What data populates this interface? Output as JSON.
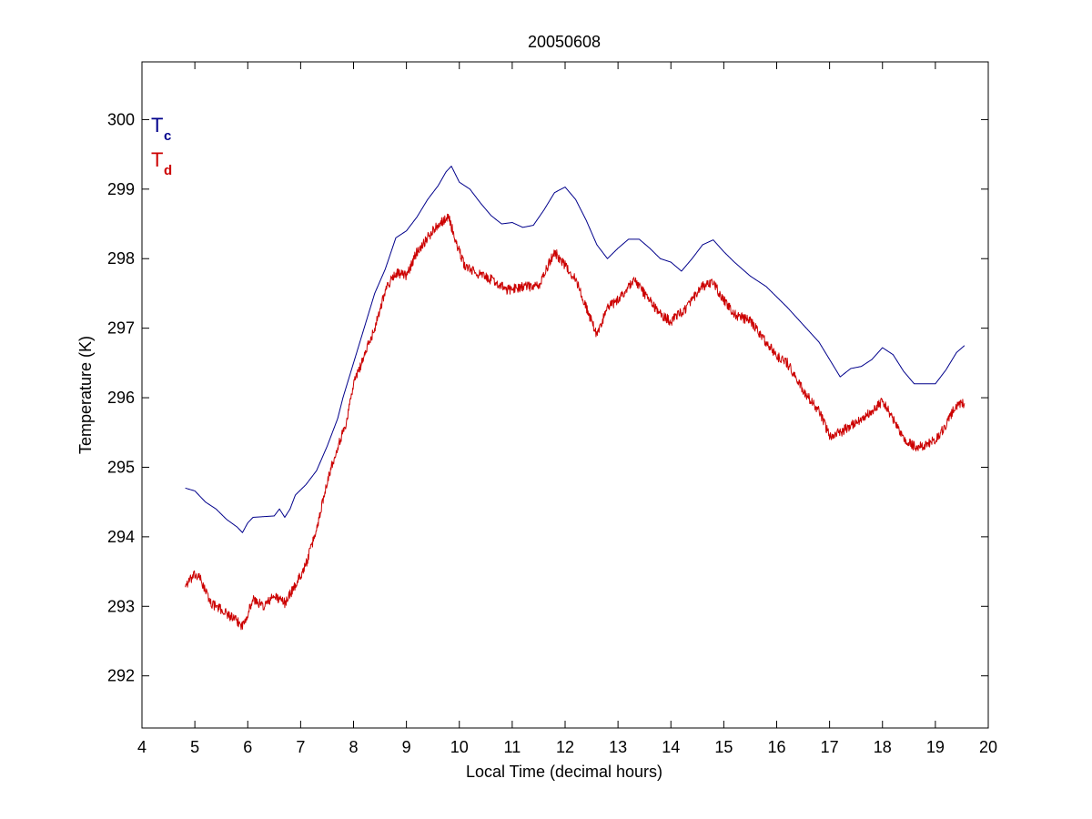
{
  "chart_data": {
    "type": "line",
    "title": "20050608",
    "xlabel": "Local Time (decimal hours)",
    "ylabel": "Temperature (K)",
    "xlim": [
      4,
      20
    ],
    "ylim": [
      291.25,
      300.83
    ],
    "xticks": [
      4,
      5,
      6,
      7,
      8,
      9,
      10,
      11,
      12,
      13,
      14,
      15,
      16,
      17,
      18,
      19,
      20
    ],
    "yticks": [
      292,
      293,
      294,
      295,
      296,
      297,
      298,
      299,
      300
    ],
    "grid": false,
    "legend_position": "top-left",
    "series": [
      {
        "name": "T_c",
        "label_main": "T",
        "label_sub": "c",
        "color": "#00008B",
        "noise": 0.0,
        "points": [
          [
            4.82,
            294.7
          ],
          [
            5.0,
            294.66
          ],
          [
            5.2,
            294.5
          ],
          [
            5.4,
            294.4
          ],
          [
            5.6,
            294.25
          ],
          [
            5.8,
            294.14
          ],
          [
            5.9,
            294.06
          ],
          [
            6.0,
            294.2
          ],
          [
            6.1,
            294.28
          ],
          [
            6.5,
            294.3
          ],
          [
            6.6,
            294.4
          ],
          [
            6.7,
            294.28
          ],
          [
            6.8,
            294.4
          ],
          [
            6.9,
            294.6
          ],
          [
            7.1,
            294.75
          ],
          [
            7.3,
            294.95
          ],
          [
            7.5,
            295.3
          ],
          [
            7.7,
            295.7
          ],
          [
            7.8,
            296.0
          ],
          [
            8.0,
            296.5
          ],
          [
            8.2,
            297.0
          ],
          [
            8.4,
            297.5
          ],
          [
            8.6,
            297.85
          ],
          [
            8.8,
            298.3
          ],
          [
            9.0,
            298.4
          ],
          [
            9.2,
            298.6
          ],
          [
            9.4,
            298.85
          ],
          [
            9.6,
            299.05
          ],
          [
            9.75,
            299.25
          ],
          [
            9.85,
            299.33
          ],
          [
            10.0,
            299.1
          ],
          [
            10.2,
            299.0
          ],
          [
            10.4,
            298.8
          ],
          [
            10.6,
            298.62
          ],
          [
            10.8,
            298.5
          ],
          [
            11.0,
            298.52
          ],
          [
            11.2,
            298.45
          ],
          [
            11.4,
            298.48
          ],
          [
            11.6,
            298.7
          ],
          [
            11.8,
            298.95
          ],
          [
            12.0,
            299.03
          ],
          [
            12.2,
            298.85
          ],
          [
            12.4,
            298.55
          ],
          [
            12.6,
            298.2
          ],
          [
            12.8,
            298.0
          ],
          [
            13.0,
            298.15
          ],
          [
            13.2,
            298.28
          ],
          [
            13.4,
            298.28
          ],
          [
            13.6,
            298.15
          ],
          [
            13.8,
            298.0
          ],
          [
            14.0,
            297.95
          ],
          [
            14.2,
            297.82
          ],
          [
            14.4,
            298.0
          ],
          [
            14.6,
            298.2
          ],
          [
            14.8,
            298.27
          ],
          [
            15.0,
            298.1
          ],
          [
            15.2,
            297.95
          ],
          [
            15.5,
            297.75
          ],
          [
            15.8,
            297.6
          ],
          [
            16.0,
            297.45
          ],
          [
            16.2,
            297.3
          ],
          [
            16.5,
            297.05
          ],
          [
            16.8,
            296.8
          ],
          [
            17.0,
            296.55
          ],
          [
            17.2,
            296.3
          ],
          [
            17.4,
            296.42
          ],
          [
            17.6,
            296.45
          ],
          [
            17.8,
            296.55
          ],
          [
            18.0,
            296.72
          ],
          [
            18.2,
            296.62
          ],
          [
            18.4,
            296.38
          ],
          [
            18.6,
            296.2
          ],
          [
            18.8,
            296.2
          ],
          [
            19.0,
            296.2
          ],
          [
            19.2,
            296.4
          ],
          [
            19.4,
            296.65
          ],
          [
            19.55,
            296.75
          ]
        ]
      },
      {
        "name": "T_d",
        "label_main": "T",
        "label_sub": "d",
        "color": "#CC0000",
        "noise": 0.07,
        "points": [
          [
            4.82,
            293.3
          ],
          [
            5.0,
            293.45
          ],
          [
            5.1,
            293.4
          ],
          [
            5.3,
            293.05
          ],
          [
            5.6,
            292.9
          ],
          [
            5.9,
            292.72
          ],
          [
            6.0,
            292.9
          ],
          [
            6.1,
            293.1
          ],
          [
            6.3,
            293.0
          ],
          [
            6.5,
            293.15
          ],
          [
            6.7,
            293.05
          ],
          [
            6.9,
            293.3
          ],
          [
            7.1,
            293.6
          ],
          [
            7.3,
            294.1
          ],
          [
            7.5,
            294.8
          ],
          [
            7.7,
            295.3
          ],
          [
            7.85,
            295.6
          ],
          [
            8.0,
            296.2
          ],
          [
            8.2,
            296.6
          ],
          [
            8.4,
            297.0
          ],
          [
            8.6,
            297.55
          ],
          [
            8.8,
            297.8
          ],
          [
            9.0,
            297.75
          ],
          [
            9.2,
            298.1
          ],
          [
            9.4,
            298.3
          ],
          [
            9.6,
            298.5
          ],
          [
            9.8,
            298.6
          ],
          [
            9.95,
            298.2
          ],
          [
            10.1,
            297.9
          ],
          [
            10.3,
            297.8
          ],
          [
            10.6,
            297.7
          ],
          [
            10.9,
            297.55
          ],
          [
            11.2,
            297.6
          ],
          [
            11.5,
            297.6
          ],
          [
            11.8,
            298.1
          ],
          [
            12.0,
            297.9
          ],
          [
            12.2,
            297.7
          ],
          [
            12.4,
            297.3
          ],
          [
            12.6,
            296.9
          ],
          [
            12.8,
            297.3
          ],
          [
            13.0,
            297.4
          ],
          [
            13.3,
            297.7
          ],
          [
            13.5,
            297.5
          ],
          [
            13.8,
            297.2
          ],
          [
            14.0,
            297.1
          ],
          [
            14.3,
            297.3
          ],
          [
            14.6,
            297.6
          ],
          [
            14.8,
            297.65
          ],
          [
            15.0,
            297.4
          ],
          [
            15.2,
            297.2
          ],
          [
            15.5,
            297.1
          ],
          [
            15.8,
            296.8
          ],
          [
            16.0,
            296.6
          ],
          [
            16.2,
            296.5
          ],
          [
            16.5,
            296.1
          ],
          [
            16.8,
            295.8
          ],
          [
            17.0,
            295.45
          ],
          [
            17.2,
            295.5
          ],
          [
            17.5,
            295.65
          ],
          [
            17.8,
            295.8
          ],
          [
            18.0,
            295.95
          ],
          [
            18.2,
            295.7
          ],
          [
            18.4,
            295.4
          ],
          [
            18.6,
            295.3
          ],
          [
            18.8,
            295.3
          ],
          [
            19.0,
            295.4
          ],
          [
            19.2,
            295.6
          ],
          [
            19.35,
            295.85
          ],
          [
            19.55,
            295.92
          ]
        ]
      }
    ]
  }
}
